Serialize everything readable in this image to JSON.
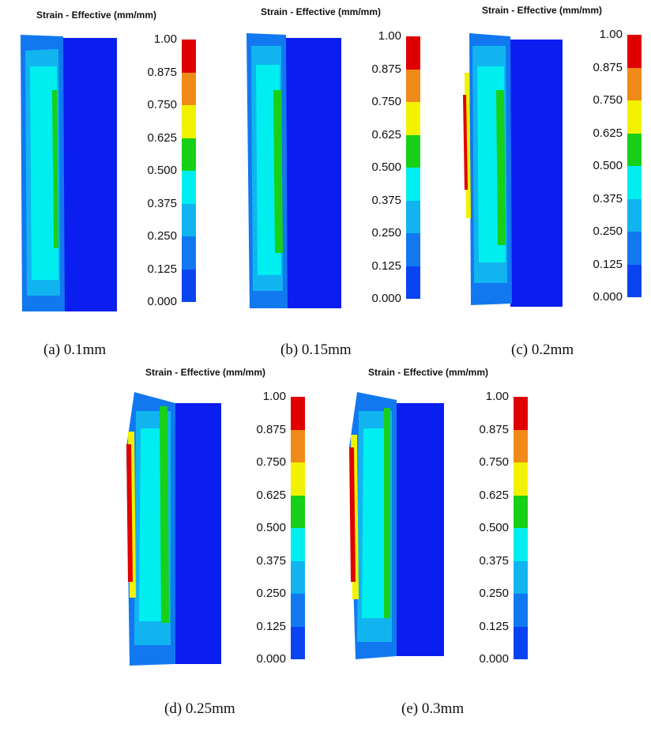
{
  "legend_title": "Strain - Effective (mm/mm)",
  "legend_ticks": [
    "1.00",
    "0.875",
    "0.750",
    "0.625",
    "0.500",
    "0.375",
    "0.250",
    "0.125",
    "0.000"
  ],
  "legend_colors": [
    "#e00000",
    "#f08a18",
    "#f2f200",
    "#18d018",
    "#00eef0",
    "#12b4f0",
    "#1278f0",
    "#0a44f0"
  ],
  "panels": [
    {
      "id": "a",
      "caption": "(a) 0.1mm"
    },
    {
      "id": "b",
      "caption": "(b) 0.15mm"
    },
    {
      "id": "c",
      "caption": "(c) 0.2mm"
    },
    {
      "id": "d",
      "caption": "(d) 0.25mm"
    },
    {
      "id": "e",
      "caption": "(e) 0.3mm"
    }
  ]
}
